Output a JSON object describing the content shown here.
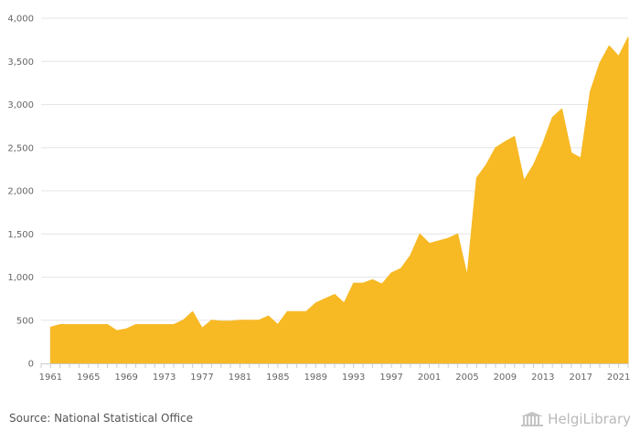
{
  "chart_data": {
    "type": "area",
    "color": "#F7B924",
    "grid": true,
    "ylim": [
      0,
      4000
    ],
    "yticks": [
      0,
      500,
      1000,
      1500,
      2000,
      2500,
      3000,
      3500,
      4000
    ],
    "ytick_labels": [
      "0",
      "500",
      "1,000",
      "1,500",
      "2,000",
      "2,500",
      "3,000",
      "3,500",
      "4,000"
    ],
    "xlim": [
      1960,
      2022
    ],
    "xticks": [
      1961,
      1965,
      1969,
      1973,
      1977,
      1981,
      1985,
      1989,
      1993,
      1997,
      2001,
      2005,
      2009,
      2013,
      2017,
      2021
    ],
    "x": [
      1961,
      1962,
      1963,
      1964,
      1965,
      1966,
      1967,
      1968,
      1969,
      1970,
      1971,
      1972,
      1973,
      1974,
      1975,
      1976,
      1977,
      1978,
      1979,
      1980,
      1981,
      1982,
      1983,
      1984,
      1985,
      1986,
      1987,
      1988,
      1989,
      1990,
      1991,
      1992,
      1993,
      1994,
      1995,
      1996,
      1997,
      1998,
      1999,
      2000,
      2001,
      2002,
      2003,
      2004,
      2005,
      2006,
      2007,
      2008,
      2009,
      2010,
      2011,
      2012,
      2013,
      2014,
      2015,
      2016,
      2017,
      2018,
      2019,
      2020,
      2021,
      2022
    ],
    "values": [
      420,
      450,
      450,
      450,
      450,
      450,
      450,
      380,
      400,
      450,
      450,
      450,
      450,
      450,
      500,
      600,
      410,
      500,
      490,
      490,
      500,
      500,
      500,
      550,
      450,
      600,
      600,
      600,
      700,
      750,
      800,
      700,
      930,
      930,
      970,
      920,
      1050,
      1100,
      1250,
      1500,
      1390,
      1420,
      1450,
      1500,
      1020,
      2150,
      2300,
      2500,
      2570,
      2630,
      2120,
      2300,
      2550,
      2850,
      2950,
      2440,
      2380,
      3150,
      3480,
      3680,
      3560,
      3780
    ]
  },
  "footer": {
    "source": "Source: National Statistical Office",
    "brand_part1": "Helgi",
    "brand_part2": "Library",
    "logo_icon": "library-building-icon"
  }
}
